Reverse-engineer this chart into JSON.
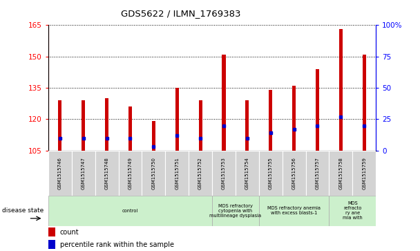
{
  "title": "GDS5622 / ILMN_1769383",
  "samples": [
    "GSM1515746",
    "GSM1515747",
    "GSM1515748",
    "GSM1515749",
    "GSM1515750",
    "GSM1515751",
    "GSM1515752",
    "GSM1515753",
    "GSM1515754",
    "GSM1515755",
    "GSM1515756",
    "GSM1515757",
    "GSM1515758",
    "GSM1515759"
  ],
  "counts": [
    129,
    129,
    130,
    126,
    119,
    135,
    129,
    151,
    129,
    134,
    136,
    144,
    163,
    151
  ],
  "percentile_ranks_pct": [
    10,
    10,
    10,
    10,
    3,
    12,
    10,
    20,
    10,
    14,
    17,
    20,
    27,
    20
  ],
  "ylim_left": [
    105,
    165
  ],
  "ylim_right": [
    0,
    100
  ],
  "yticks_left": [
    105,
    120,
    135,
    150,
    165
  ],
  "yticks_right": [
    0,
    25,
    50,
    75,
    100
  ],
  "bar_color": "#cc0000",
  "dot_color": "#0000cc",
  "bg_color": "#ffffff",
  "bar_width": 0.15,
  "disease_groups": [
    {
      "label": "control",
      "start": 0,
      "end": 7
    },
    {
      "label": "MDS refractory\ncytopenia with\nmultilineage dysplasia",
      "start": 7,
      "end": 9
    },
    {
      "label": "MDS refractory anemia\nwith excess blasts-1",
      "start": 9,
      "end": 12
    },
    {
      "label": "MDS\nrefracto\nry ane\nmia with",
      "start": 12,
      "end": 14
    }
  ],
  "group_color": "#ccf0cc",
  "label_bg": "#d0d0d0",
  "disease_state_label": "disease state",
  "legend": [
    {
      "label": "count",
      "color": "#cc0000"
    },
    {
      "label": "percentile rank within the sample",
      "color": "#0000cc"
    }
  ]
}
